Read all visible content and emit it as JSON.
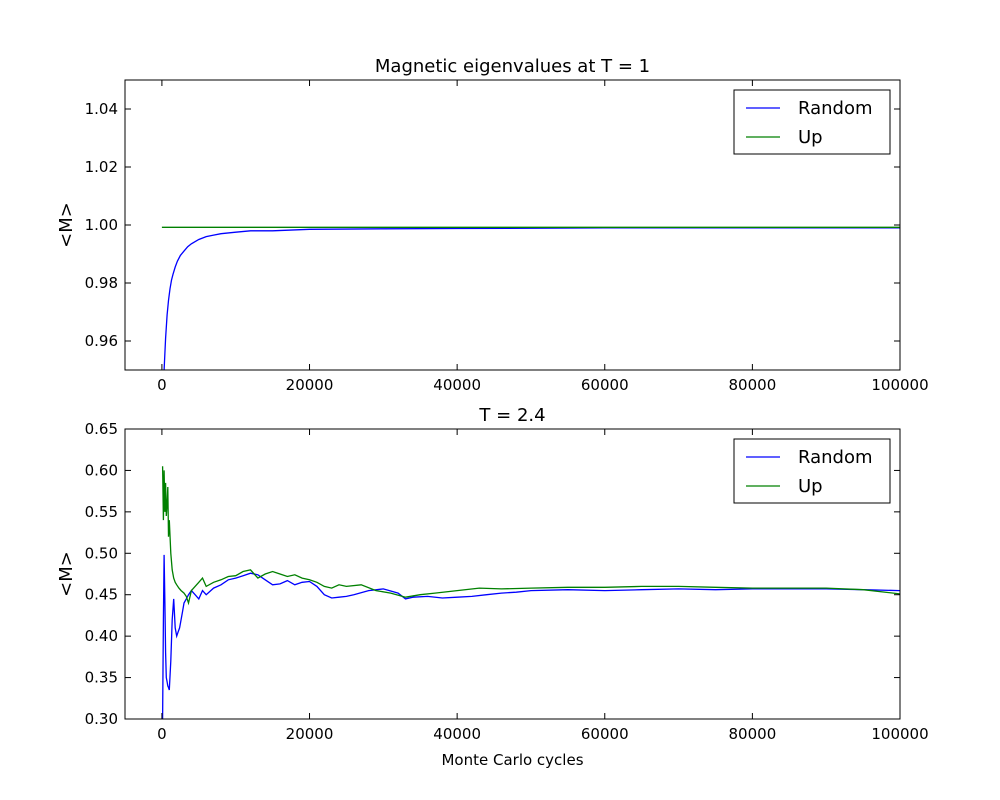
{
  "chart_data": [
    {
      "type": "line",
      "title": "Magnetic eigenvalues at T = 1",
      "xlabel": "",
      "ylabel": "<M>",
      "xlim": [
        -5000,
        100000
      ],
      "ylim": [
        0.95,
        1.05
      ],
      "xticks": [
        0,
        20000,
        40000,
        60000,
        80000,
        100000
      ],
      "yticks": [
        0.96,
        0.98,
        1.0,
        1.02,
        1.04
      ],
      "tick_labels_x": [
        "0",
        "20000",
        "40000",
        "60000",
        "80000",
        "100000"
      ],
      "tick_labels_y": [
        "0.96",
        "0.98",
        "1.00",
        "1.02",
        "1.04"
      ],
      "legend_position": "upper right",
      "grid": false,
      "series": [
        {
          "name": "Random",
          "color": "#0000ff",
          "x": [
            300,
            500,
            700,
            900,
            1100,
            1300,
            1500,
            1800,
            2100,
            2500,
            3000,
            3500,
            4000,
            5000,
            6000,
            7000,
            8000,
            10000,
            12000,
            15000,
            20000,
            30000,
            40000,
            50000,
            60000,
            70000,
            80000,
            100000
          ],
          "y": [
            0.95,
            0.961,
            0.969,
            0.974,
            0.978,
            0.981,
            0.983,
            0.9855,
            0.9875,
            0.9895,
            0.991,
            0.9925,
            0.9935,
            0.995,
            0.996,
            0.9965,
            0.997,
            0.9975,
            0.998,
            0.998,
            0.9985,
            0.9987,
            0.9988,
            0.9989,
            0.999,
            0.999,
            0.999,
            0.999
          ]
        },
        {
          "name": "Up",
          "color": "#008000",
          "x": [
            0,
            100000
          ],
          "y": [
            0.9992,
            0.9992
          ]
        }
      ]
    },
    {
      "type": "line",
      "title": "T = 2.4",
      "xlabel": "Monte Carlo cycles",
      "ylabel": "<M>",
      "xlim": [
        -5000,
        100000
      ],
      "ylim": [
        0.3,
        0.65
      ],
      "xticks": [
        0,
        20000,
        40000,
        60000,
        80000,
        100000
      ],
      "yticks": [
        0.3,
        0.35,
        0.4,
        0.45,
        0.5,
        0.55,
        0.6,
        0.65
      ],
      "tick_labels_x": [
        "0",
        "20000",
        "40000",
        "60000",
        "80000",
        "100000"
      ],
      "tick_labels_y": [
        "0.30",
        "0.35",
        "0.40",
        "0.45",
        "0.50",
        "0.55",
        "0.60",
        "0.65"
      ],
      "legend_position": "upper right",
      "grid": false,
      "series": [
        {
          "name": "Random",
          "color": "#0000ff",
          "x": [
            100,
            200,
            300,
            400,
            500,
            600,
            700,
            800,
            900,
            1000,
            1200,
            1400,
            1600,
            1800,
            2000,
            2200,
            2400,
            2600,
            2800,
            3000,
            3300,
            3600,
            4000,
            4500,
            5000,
            5500,
            6000,
            7000,
            8000,
            9000,
            10000,
            11000,
            12000,
            13000,
            14000,
            15000,
            16000,
            17000,
            18000,
            19000,
            20000,
            21000,
            22000,
            23000,
            24000,
            25000,
            26000,
            28000,
            30000,
            32000,
            33000,
            34000,
            36000,
            38000,
            40000,
            42000,
            44000,
            46000,
            48000,
            50000,
            55000,
            60000,
            65000,
            70000,
            75000,
            80000,
            85000,
            90000,
            95000,
            100000
          ],
          "y": [
            0.3,
            0.42,
            0.498,
            0.44,
            0.38,
            0.35,
            0.345,
            0.34,
            0.338,
            0.335,
            0.37,
            0.42,
            0.445,
            0.41,
            0.4,
            0.405,
            0.41,
            0.42,
            0.43,
            0.44,
            0.445,
            0.45,
            0.455,
            0.45,
            0.445,
            0.455,
            0.45,
            0.458,
            0.462,
            0.468,
            0.47,
            0.473,
            0.476,
            0.474,
            0.468,
            0.462,
            0.463,
            0.467,
            0.462,
            0.465,
            0.466,
            0.46,
            0.45,
            0.446,
            0.447,
            0.448,
            0.45,
            0.455,
            0.457,
            0.452,
            0.445,
            0.447,
            0.448,
            0.446,
            0.447,
            0.448,
            0.45,
            0.452,
            0.453,
            0.455,
            0.456,
            0.455,
            0.456,
            0.457,
            0.456,
            0.457,
            0.457,
            0.457,
            0.456,
            0.455
          ]
        },
        {
          "name": "Up",
          "color": "#008000",
          "x": [
            100,
            200,
            300,
            400,
            500,
            600,
            700,
            800,
            900,
            1000,
            1200,
            1400,
            1600,
            1800,
            2000,
            2300,
            2600,
            3000,
            3300,
            3600,
            4000,
            4500,
            5000,
            5500,
            6000,
            7000,
            8000,
            9000,
            10000,
            11000,
            12000,
            13000,
            14000,
            15000,
            16000,
            17000,
            18000,
            19000,
            20000,
            21000,
            22000,
            23000,
            24000,
            25000,
            27000,
            29000,
            31000,
            33000,
            35000,
            37000,
            40000,
            43000,
            46000,
            50000,
            55000,
            60000,
            65000,
            70000,
            75000,
            80000,
            85000,
            90000,
            95000,
            100000
          ],
          "y": [
            0.605,
            0.54,
            0.6,
            0.55,
            0.585,
            0.545,
            0.56,
            0.58,
            0.52,
            0.54,
            0.5,
            0.48,
            0.47,
            0.465,
            0.462,
            0.458,
            0.455,
            0.452,
            0.448,
            0.44,
            0.455,
            0.46,
            0.465,
            0.47,
            0.46,
            0.465,
            0.468,
            0.472,
            0.473,
            0.478,
            0.48,
            0.47,
            0.475,
            0.478,
            0.475,
            0.472,
            0.474,
            0.47,
            0.468,
            0.465,
            0.46,
            0.458,
            0.462,
            0.46,
            0.462,
            0.455,
            0.452,
            0.447,
            0.45,
            0.452,
            0.455,
            0.458,
            0.457,
            0.458,
            0.459,
            0.459,
            0.46,
            0.46,
            0.459,
            0.458,
            0.458,
            0.458,
            0.456,
            0.451
          ]
        }
      ]
    }
  ]
}
